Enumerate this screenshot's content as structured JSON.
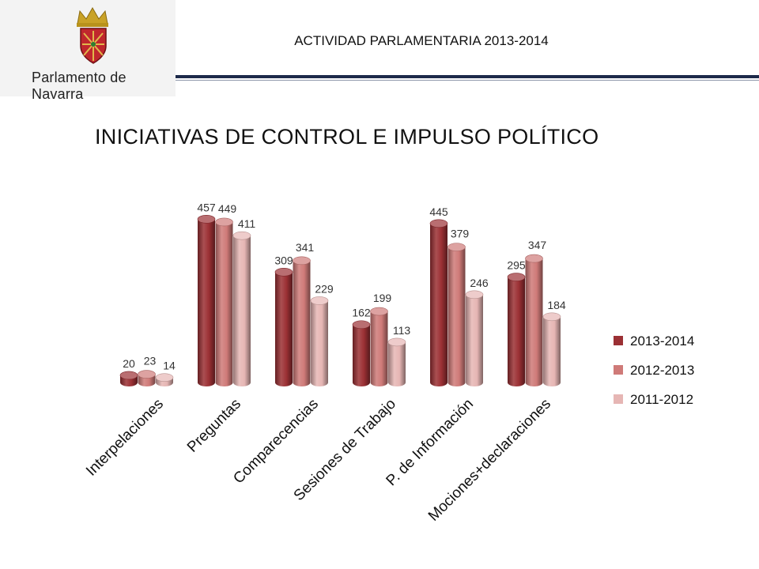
{
  "header": {
    "logo_text": "Parlamento de Navarra",
    "title": "ACTIVIDAD PARLAMENTARIA 2013-2014"
  },
  "main_title": "INICIATIVAS DE CONTROL E IMPULSO POLÍTICO",
  "colors": {
    "series_2013_2014": "#9b3034",
    "series_2012_2013": "#cf7a78",
    "series_2011_2012": "#e6b6b4",
    "header_rule": "#1d2a4a"
  },
  "chart_data": {
    "type": "bar",
    "title": "INICIATIVAS DE CONTROL E IMPULSO POLÍTICO",
    "categories": [
      "Interpelaciones",
      "Preguntas",
      "Comparecencias",
      "Sesiones de Trabajo",
      "P. de Información",
      "Mociones+declaraciones"
    ],
    "series": [
      {
        "name": "2013-2014",
        "values": [
          20,
          457,
          309,
          162,
          445,
          295
        ]
      },
      {
        "name": "2012-2013",
        "values": [
          23,
          449,
          341,
          199,
          379,
          347
        ]
      },
      {
        "name": "2011-2012",
        "values": [
          14,
          411,
          229,
          113,
          246,
          184
        ]
      }
    ],
    "ylim": [
      0,
      460
    ],
    "grid": false,
    "legend_position": "right",
    "style": "3d-cylinder"
  }
}
